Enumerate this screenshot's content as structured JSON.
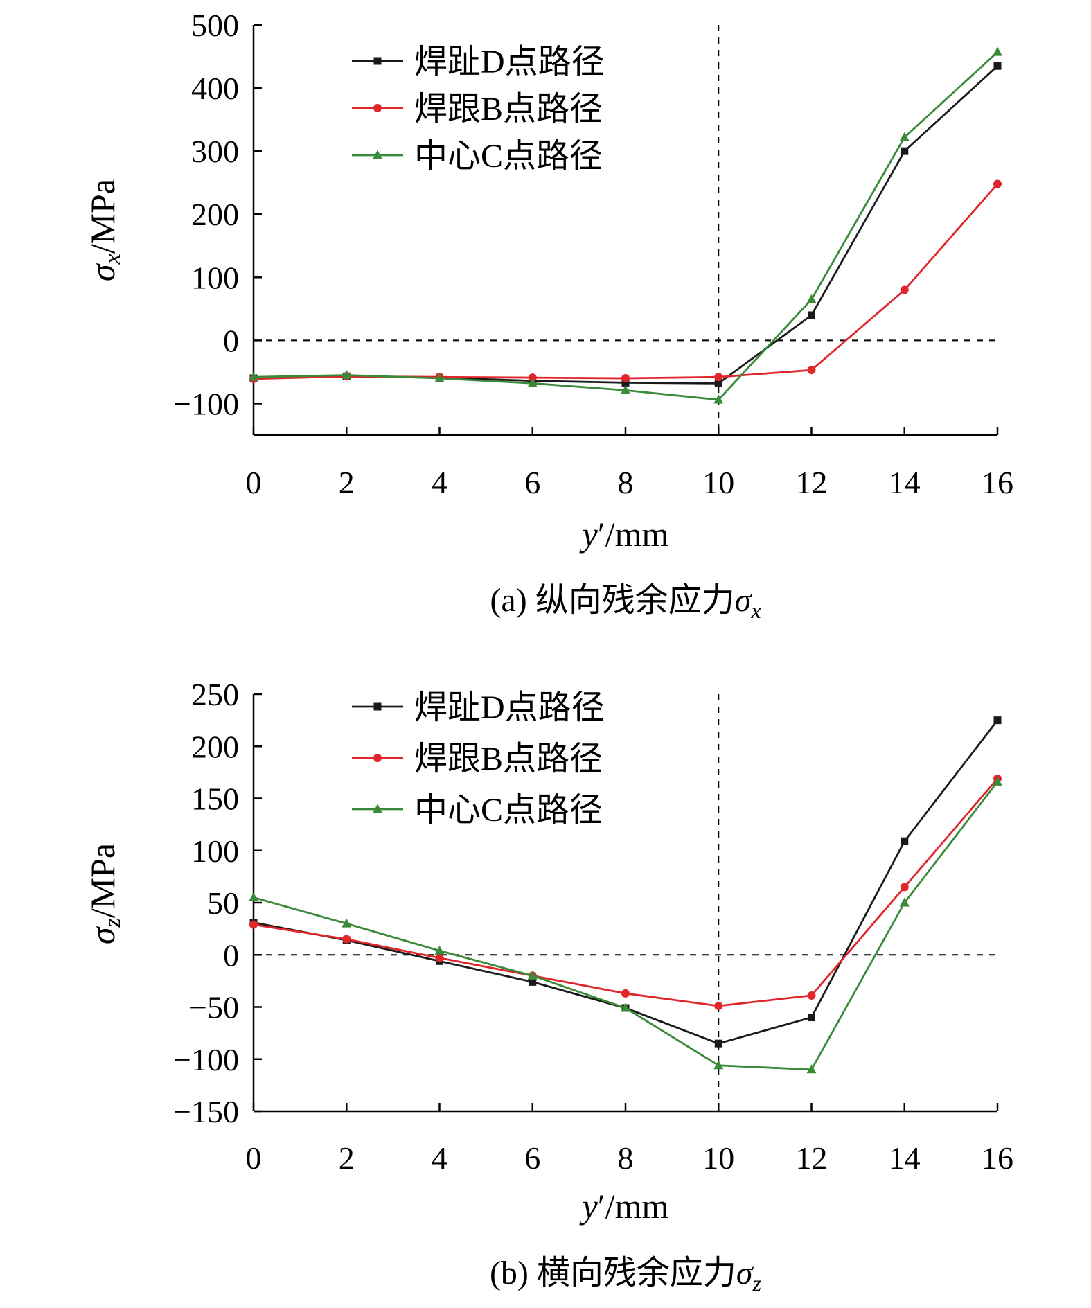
{
  "chart_data": [
    {
      "type": "line",
      "caption": "(a) 纵向残余应力σx",
      "caption_parts": [
        "(a) 纵向残余应力",
        "σ",
        "x"
      ],
      "xlabel": "y′/mm",
      "xlabel_parts": [
        "y",
        "′/mm"
      ],
      "ylabel": "σx/MPa",
      "ylabel_parts": [
        "σ",
        "x",
        "/MPa"
      ],
      "x": [
        0,
        2,
        4,
        6,
        8,
        10,
        12,
        14,
        16
      ],
      "xlim": [
        0,
        16
      ],
      "ylim": [
        -150,
        500
      ],
      "yticks": [
        500,
        400,
        300,
        200,
        100,
        0,
        -100
      ],
      "ytick_labels": [
        "500",
        "400",
        "300",
        "200",
        "100",
        "0",
        "−100"
      ],
      "xticks": [
        0,
        2,
        4,
        6,
        8,
        10,
        12,
        14,
        16
      ],
      "xtick_labels": [
        "0",
        "2",
        "4",
        "6",
        "8",
        "10",
        "12",
        "14",
        "16"
      ],
      "reference_lines": {
        "x": 10,
        "y": 0,
        "style": "dashed"
      },
      "legend_position": "top-left",
      "series": [
        {
          "name": "焊趾D点路径",
          "color": "#1a1a1a",
          "marker": "square",
          "values": [
            -60,
            -57,
            -59,
            -64,
            -67,
            -68,
            40,
            300,
            435
          ]
        },
        {
          "name": "焊跟B点路径",
          "color": "#e0262b",
          "marker": "circle",
          "values": [
            -61,
            -57,
            -58,
            -59,
            -60,
            -58,
            -47,
            80,
            248
          ]
        },
        {
          "name": "中心C点路径",
          "color": "#3a8a3a",
          "marker": "triangle",
          "values": [
            -58,
            -55,
            -60,
            -68,
            -79,
            -94,
            65,
            322,
            457
          ]
        }
      ]
    },
    {
      "type": "line",
      "caption": "(b) 横向残余应力σz",
      "caption_parts": [
        "(b) 横向残余应力",
        "σ",
        "z"
      ],
      "xlabel": "y′/mm",
      "xlabel_parts": [
        "y",
        "′/mm"
      ],
      "ylabel": "σz/MPa",
      "ylabel_parts": [
        "σ",
        "z",
        "/MPa"
      ],
      "x": [
        0,
        2,
        4,
        6,
        8,
        10,
        12,
        14,
        16
      ],
      "xlim": [
        0,
        16
      ],
      "ylim": [
        -150,
        250
      ],
      "yticks": [
        250,
        200,
        150,
        100,
        50,
        0,
        -50,
        -100,
        -150
      ],
      "ytick_labels": [
        "250",
        "200",
        "150",
        "100",
        "50",
        "0",
        "−50",
        "−100",
        "−150"
      ],
      "xticks": [
        0,
        2,
        4,
        6,
        8,
        10,
        12,
        14,
        16
      ],
      "xtick_labels": [
        "0",
        "2",
        "4",
        "6",
        "8",
        "10",
        "12",
        "14",
        "16"
      ],
      "reference_lines": {
        "x": 10,
        "y": 0,
        "style": "dashed"
      },
      "legend_position": "top-left",
      "series": [
        {
          "name": "焊趾D点路径",
          "color": "#1a1a1a",
          "marker": "square",
          "values": [
            31,
            14,
            -6,
            -26,
            -51,
            -85,
            -60,
            109,
            225
          ]
        },
        {
          "name": "焊跟B点路径",
          "color": "#e0262b",
          "marker": "circle",
          "values": [
            29,
            15,
            -3,
            -20,
            -37,
            -49,
            -39,
            65,
            169
          ]
        },
        {
          "name": "中心C点路径",
          "color": "#3a8a3a",
          "marker": "triangle",
          "values": [
            55,
            30,
            4,
            -20,
            -51,
            -106,
            -110,
            50,
            166
          ]
        }
      ]
    }
  ]
}
